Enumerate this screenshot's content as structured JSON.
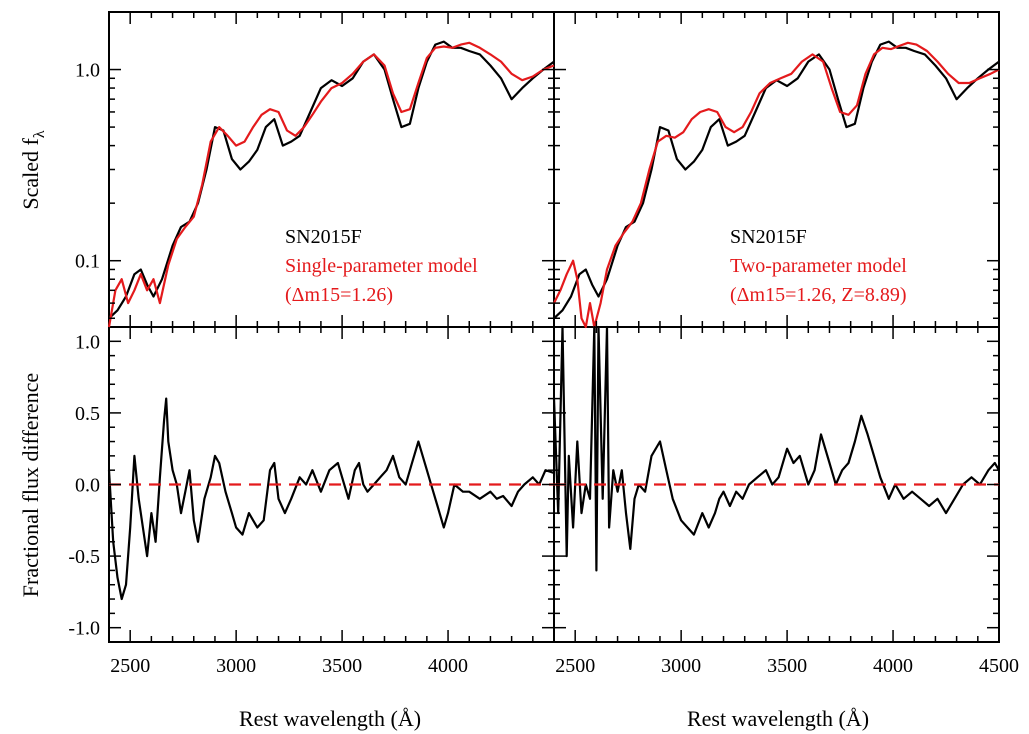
{
  "colors": {
    "observed": "#000000",
    "model": "#e41a1c",
    "zero_line": "#e41a1c"
  },
  "axes": {
    "xlabel": "Rest wavelength (Å)",
    "ylabel_top": "Scaled f",
    "ylabel_top_sub": "λ",
    "ylabel_bottom": "Fractional flux difference",
    "x_tick_labels_left": [
      "2500",
      "3000",
      "3500",
      "4000"
    ],
    "x_tick_labels_right": [
      "2500",
      "3000",
      "3500",
      "4000",
      "4500"
    ],
    "y_tick_labels_top": [
      "0.1",
      "1.0"
    ],
    "y_tick_labels_bottom": [
      "-1.0",
      "-0.5",
      "0.0",
      "0.5",
      "1.0"
    ]
  },
  "panels": {
    "left": {
      "name": "SN2015F",
      "model": "Single-parameter model",
      "params": "(Δm15=1.26)"
    },
    "right": {
      "name": "SN2015F",
      "model": "Two-parameter model",
      "params": "(Δm15=1.26, Z=8.89)"
    }
  },
  "chart_data": [
    {
      "type": "line",
      "panel": "top-left",
      "yscale": "log",
      "xlim": [
        2400,
        4500
      ],
      "ylim": [
        0.045,
        2.0
      ],
      "series": [
        {
          "x": [
            2400,
            2440,
            2480,
            2520,
            2550,
            2580,
            2610,
            2650,
            2700,
            2740,
            2780,
            2820,
            2860,
            2900,
            2940,
            2980,
            3020,
            3060,
            3100,
            3140,
            3180,
            3220,
            3260,
            3300,
            3350,
            3400,
            3450,
            3500,
            3550,
            3600,
            3650,
            3700,
            3740,
            3780,
            3820,
            3860,
            3900,
            3940,
            3980,
            4020,
            4060,
            4100,
            4150,
            4200,
            4250,
            4300,
            4350,
            4400,
            4450,
            4500
          ],
          "y": [
            0.05,
            0.055,
            0.065,
            0.085,
            0.09,
            0.075,
            0.065,
            0.08,
            0.12,
            0.15,
            0.16,
            0.2,
            0.3,
            0.5,
            0.48,
            0.34,
            0.3,
            0.33,
            0.38,
            0.5,
            0.55,
            0.4,
            0.42,
            0.45,
            0.6,
            0.8,
            0.88,
            0.82,
            0.9,
            1.1,
            1.2,
            1.0,
            0.7,
            0.5,
            0.52,
            0.8,
            1.1,
            1.35,
            1.4,
            1.3,
            1.3,
            1.25,
            1.2,
            1.05,
            0.9,
            0.7,
            0.8,
            0.9,
            1.0,
            1.1
          ]
        },
        {
          "x": [
            2400,
            2430,
            2460,
            2490,
            2520,
            2550,
            2580,
            2610,
            2640,
            2680,
            2720,
            2760,
            2800,
            2840,
            2880,
            2920,
            2960,
            3000,
            3040,
            3080,
            3120,
            3160,
            3200,
            3240,
            3280,
            3320,
            3360,
            3400,
            3450,
            3500,
            3550,
            3600,
            3650,
            3700,
            3740,
            3780,
            3820,
            3860,
            3900,
            3940,
            3980,
            4020,
            4060,
            4100,
            4150,
            4200,
            4250,
            4300,
            4350,
            4400,
            4450,
            4500
          ],
          "y": [
            0.045,
            0.07,
            0.08,
            0.06,
            0.07,
            0.085,
            0.07,
            0.08,
            0.06,
            0.095,
            0.13,
            0.15,
            0.17,
            0.25,
            0.42,
            0.5,
            0.45,
            0.4,
            0.42,
            0.5,
            0.58,
            0.62,
            0.6,
            0.48,
            0.45,
            0.5,
            0.58,
            0.68,
            0.8,
            0.85,
            0.95,
            1.1,
            1.2,
            1.05,
            0.75,
            0.6,
            0.62,
            0.85,
            1.15,
            1.3,
            1.32,
            1.3,
            1.35,
            1.38,
            1.3,
            1.2,
            1.1,
            0.95,
            0.88,
            0.92,
            1.0,
            1.05
          ]
        }
      ]
    },
    {
      "type": "line",
      "panel": "top-right",
      "yscale": "log",
      "xlim": [
        2400,
        4500
      ],
      "ylim": [
        0.045,
        2.0
      ],
      "series": [
        {
          "x": [
            2400,
            2440,
            2480,
            2520,
            2550,
            2580,
            2610,
            2650,
            2700,
            2740,
            2780,
            2820,
            2860,
            2900,
            2940,
            2980,
            3020,
            3060,
            3100,
            3140,
            3180,
            3220,
            3260,
            3300,
            3350,
            3400,
            3450,
            3500,
            3550,
            3600,
            3650,
            3700,
            3740,
            3780,
            3820,
            3860,
            3900,
            3940,
            3980,
            4020,
            4060,
            4100,
            4150,
            4200,
            4250,
            4300,
            4350,
            4400,
            4450,
            4500
          ],
          "y": [
            0.05,
            0.055,
            0.065,
            0.085,
            0.09,
            0.075,
            0.065,
            0.08,
            0.12,
            0.15,
            0.16,
            0.2,
            0.3,
            0.5,
            0.48,
            0.34,
            0.3,
            0.33,
            0.38,
            0.5,
            0.55,
            0.4,
            0.42,
            0.45,
            0.6,
            0.8,
            0.88,
            0.82,
            0.9,
            1.1,
            1.2,
            1.0,
            0.7,
            0.5,
            0.52,
            0.8,
            1.1,
            1.35,
            1.4,
            1.3,
            1.3,
            1.25,
            1.2,
            1.05,
            0.9,
            0.7,
            0.8,
            0.9,
            1.0,
            1.1
          ]
        },
        {
          "x": [
            2400,
            2430,
            2460,
            2490,
            2510,
            2530,
            2550,
            2570,
            2590,
            2620,
            2650,
            2690,
            2730,
            2770,
            2810,
            2850,
            2890,
            2930,
            2970,
            3010,
            3050,
            3090,
            3130,
            3170,
            3210,
            3250,
            3290,
            3330,
            3370,
            3420,
            3470,
            3520,
            3570,
            3620,
            3670,
            3710,
            3750,
            3790,
            3830,
            3870,
            3910,
            3950,
            3990,
            4030,
            4070,
            4110,
            4160,
            4210,
            4260,
            4310,
            4360,
            4410,
            4460,
            4500
          ],
          "y": [
            0.06,
            0.07,
            0.085,
            0.1,
            0.08,
            0.05,
            0.045,
            0.06,
            0.045,
            0.06,
            0.09,
            0.12,
            0.14,
            0.16,
            0.2,
            0.3,
            0.42,
            0.45,
            0.44,
            0.47,
            0.55,
            0.6,
            0.62,
            0.6,
            0.5,
            0.47,
            0.5,
            0.6,
            0.75,
            0.85,
            0.9,
            0.95,
            1.1,
            1.2,
            1.1,
            0.8,
            0.6,
            0.58,
            0.65,
            0.95,
            1.2,
            1.3,
            1.28,
            1.33,
            1.38,
            1.35,
            1.25,
            1.1,
            0.95,
            0.85,
            0.85,
            0.9,
            0.95,
            1.0
          ]
        }
      ]
    },
    {
      "type": "line",
      "panel": "bottom-left",
      "xlim": [
        2400,
        4500
      ],
      "ylim": [
        -1.1,
        1.1
      ],
      "series": [
        {
          "x": [
            2400,
            2420,
            2440,
            2460,
            2480,
            2500,
            2520,
            2540,
            2560,
            2580,
            2600,
            2620,
            2640,
            2660,
            2670,
            2680,
            2700,
            2720,
            2740,
            2760,
            2780,
            2800,
            2820,
            2850,
            2880,
            2900,
            2920,
            2950,
            2980,
            3000,
            3030,
            3060,
            3100,
            3130,
            3160,
            3180,
            3200,
            3230,
            3260,
            3300,
            3330,
            3360,
            3400,
            3440,
            3480,
            3500,
            3530,
            3560,
            3580,
            3600,
            3620,
            3650,
            3680,
            3710,
            3740,
            3770,
            3800,
            3830,
            3860,
            3900,
            3920,
            3950,
            3980,
            4000,
            4030,
            4070,
            4100,
            4150,
            4200,
            4230,
            4260,
            4300,
            4330,
            4360,
            4400,
            4430,
            4460,
            4500
          ],
          "y": [
            0.1,
            -0.4,
            -0.65,
            -0.8,
            -0.7,
            -0.3,
            0.2,
            -0.1,
            -0.3,
            -0.5,
            -0.2,
            -0.4,
            0.05,
            0.45,
            0.6,
            0.3,
            0.1,
            0.0,
            -0.2,
            -0.05,
            0.1,
            -0.25,
            -0.4,
            -0.1,
            0.05,
            0.2,
            0.15,
            -0.05,
            -0.2,
            -0.3,
            -0.35,
            -0.2,
            -0.3,
            -0.25,
            0.1,
            0.15,
            -0.1,
            -0.2,
            -0.1,
            0.05,
            0.0,
            0.1,
            -0.05,
            0.1,
            0.15,
            0.05,
            -0.1,
            0.1,
            0.15,
            0.0,
            -0.05,
            0.0,
            0.05,
            0.1,
            0.2,
            0.05,
            0.0,
            0.15,
            0.3,
            0.1,
            0.0,
            -0.15,
            -0.3,
            -0.2,
            0.0,
            -0.05,
            -0.05,
            -0.1,
            -0.05,
            -0.1,
            -0.08,
            -0.15,
            -0.05,
            0.0,
            0.05,
            0.0,
            0.1,
            0.08
          ]
        }
      ]
    },
    {
      "type": "line",
      "panel": "bottom-right",
      "xlim": [
        2400,
        4500
      ],
      "ylim": [
        -1.1,
        1.1
      ],
      "series": [
        {
          "x": [
            2400,
            2420,
            2440,
            2460,
            2470,
            2490,
            2510,
            2530,
            2550,
            2570,
            2590,
            2600,
            2610,
            2630,
            2650,
            2660,
            2680,
            2700,
            2720,
            2740,
            2760,
            2780,
            2800,
            2830,
            2860,
            2900,
            2930,
            2960,
            3000,
            3030,
            3060,
            3100,
            3130,
            3160,
            3180,
            3200,
            3230,
            3260,
            3290,
            3320,
            3360,
            3400,
            3430,
            3460,
            3500,
            3530,
            3560,
            3600,
            3630,
            3660,
            3700,
            3730,
            3760,
            3790,
            3820,
            3850,
            3880,
            3910,
            3940,
            3980,
            4010,
            4050,
            4090,
            4130,
            4170,
            4210,
            4250,
            4290,
            4330,
            4370,
            4410,
            4450,
            4480,
            4500
          ],
          "y": [
            0.6,
            -0.2,
            1.1,
            -0.5,
            0.2,
            -0.3,
            0.3,
            -0.2,
            0.0,
            -0.1,
            1.1,
            -0.6,
            1.1,
            -0.1,
            1.1,
            -0.3,
            0.1,
            -0.05,
            0.1,
            -0.2,
            -0.45,
            -0.1,
            0.0,
            -0.05,
            0.2,
            0.3,
            0.1,
            -0.1,
            -0.25,
            -0.3,
            -0.35,
            -0.2,
            -0.3,
            -0.2,
            -0.1,
            -0.05,
            -0.15,
            -0.05,
            -0.1,
            0.0,
            0.05,
            0.1,
            0.0,
            0.05,
            0.25,
            0.15,
            0.2,
            0.0,
            0.1,
            0.35,
            0.15,
            0.0,
            0.1,
            0.15,
            0.3,
            0.48,
            0.35,
            0.2,
            0.05,
            -0.1,
            0.0,
            -0.1,
            -0.05,
            -0.1,
            -0.15,
            -0.1,
            -0.2,
            -0.1,
            0.0,
            0.05,
            0.0,
            0.1,
            0.15,
            0.1
          ]
        }
      ]
    }
  ]
}
